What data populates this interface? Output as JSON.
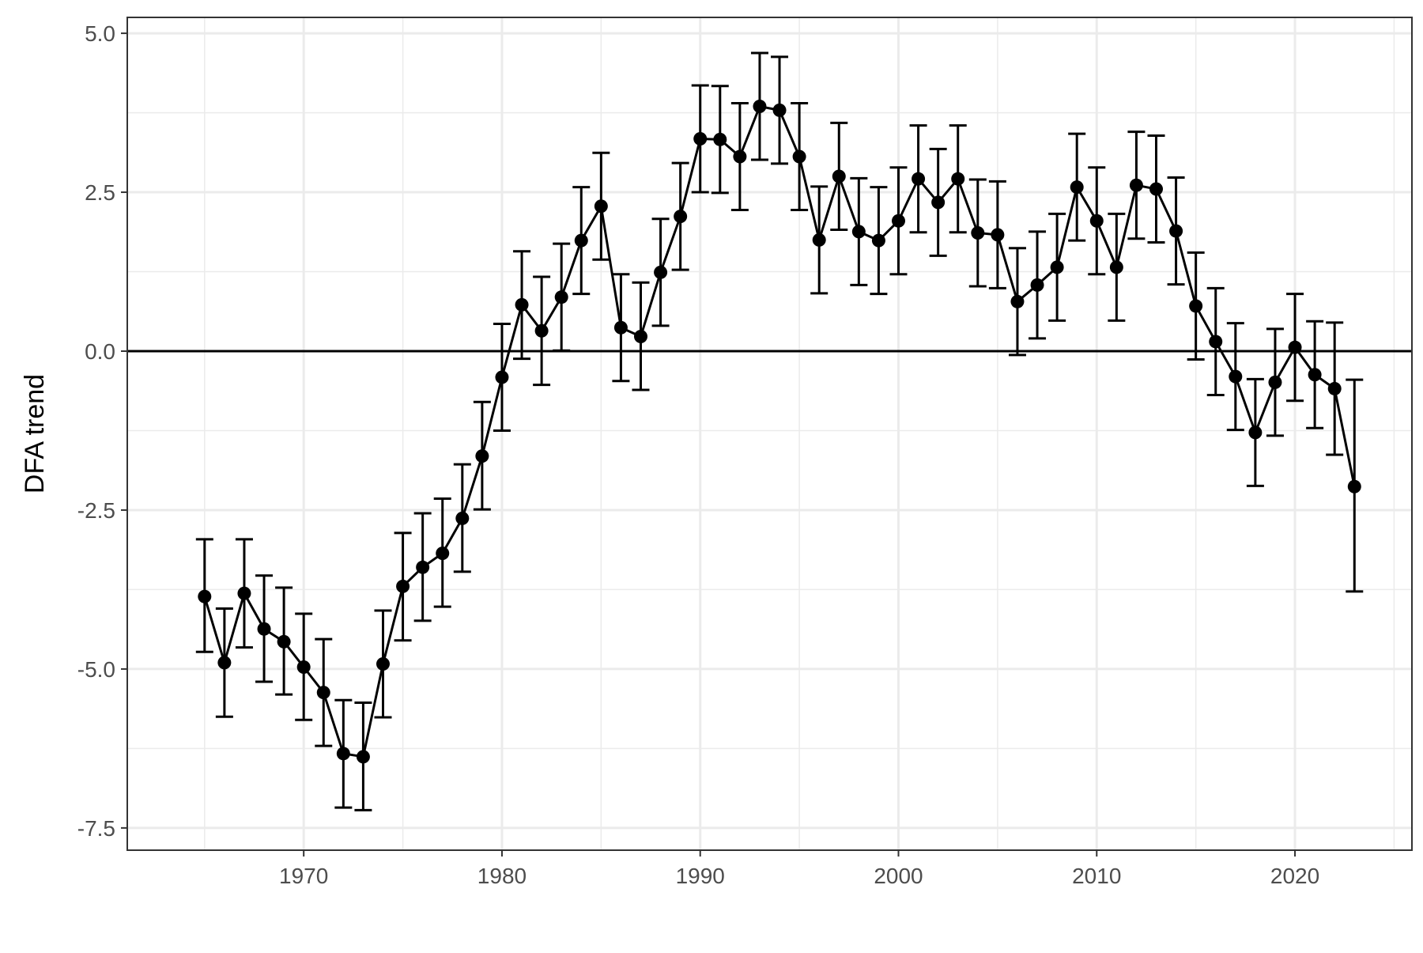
{
  "chart_data": {
    "type": "line",
    "title": "",
    "xlabel": "",
    "ylabel": "DFA trend",
    "xlim": [
      1961.1,
      2025.9
    ],
    "ylim": [
      -7.85,
      5.25
    ],
    "x_ticks": [
      1970,
      1980,
      1990,
      2000,
      2010,
      2020
    ],
    "y_ticks": [
      5.0,
      2.5,
      0.0,
      -2.5,
      -5.0,
      -7.5
    ],
    "x_tick_labels": [
      "1970",
      "1980",
      "1990",
      "2000",
      "2010",
      "2020"
    ],
    "y_tick_labels": [
      "5.0",
      "2.5",
      "0.0",
      "-2.5",
      "-5.0",
      "-7.5"
    ],
    "grid": true,
    "reference_line_y": 0,
    "series": [
      {
        "x": [
          1965,
          1966,
          1967,
          1968,
          1969,
          1970,
          1971,
          1972,
          1973,
          1974,
          1975,
          1976,
          1977,
          1978,
          1979,
          1980,
          1981,
          1982,
          1983,
          1984,
          1985,
          1986,
          1987,
          1988,
          1989,
          1990,
          1991,
          1992,
          1993,
          1994,
          1995,
          1996,
          1997,
          1998,
          1999,
          2000,
          2001,
          2002,
          2003,
          2004,
          2005,
          2006,
          2007,
          2008,
          2009,
          2010,
          2011,
          2012,
          2013,
          2014,
          2015,
          2016,
          2017,
          2018,
          2019,
          2020,
          2021,
          2022,
          2023
        ],
        "y": [
          -3.86,
          -4.9,
          -3.81,
          -4.37,
          -4.57,
          -4.97,
          -5.37,
          -6.33,
          -6.38,
          -4.92,
          -3.7,
          -3.4,
          -3.18,
          -2.63,
          -1.65,
          -0.41,
          0.73,
          0.32,
          0.85,
          1.74,
          2.28,
          0.37,
          0.23,
          1.24,
          2.12,
          3.34,
          3.33,
          3.06,
          3.85,
          3.79,
          3.06,
          1.75,
          2.75,
          1.88,
          1.74,
          2.05,
          2.71,
          2.34,
          2.71,
          1.86,
          1.83,
          0.78,
          1.04,
          1.32,
          2.58,
          2.05,
          1.32,
          2.61,
          2.55,
          1.89,
          0.71,
          0.15,
          -0.4,
          -1.28,
          -0.49,
          0.06,
          -0.37,
          -0.59,
          -2.13
        ],
        "lower": [
          -4.73,
          -5.75,
          -4.66,
          -5.2,
          -5.4,
          -5.8,
          -6.21,
          -7.18,
          -7.22,
          -5.76,
          -4.55,
          -4.24,
          -4.02,
          -3.47,
          -2.49,
          -1.25,
          -0.12,
          -0.53,
          0.01,
          0.9,
          1.44,
          -0.47,
          -0.61,
          0.4,
          1.28,
          2.5,
          2.49,
          2.22,
          3.01,
          2.95,
          2.22,
          0.91,
          1.91,
          1.04,
          0.9,
          1.21,
          1.87,
          1.5,
          1.87,
          1.02,
          0.99,
          -0.06,
          0.2,
          0.48,
          1.74,
          1.21,
          0.48,
          1.77,
          1.71,
          1.05,
          -0.13,
          -0.69,
          -1.24,
          -2.12,
          -1.33,
          -0.78,
          -1.21,
          -1.63,
          -3.78
        ],
        "upper": [
          -2.96,
          -4.05,
          -2.96,
          -3.53,
          -3.72,
          -4.13,
          -4.53,
          -5.49,
          -5.53,
          -4.08,
          -2.86,
          -2.55,
          -2.32,
          -1.78,
          -0.8,
          0.43,
          1.57,
          1.17,
          1.69,
          2.58,
          3.12,
          1.21,
          1.08,
          2.08,
          2.96,
          4.18,
          4.17,
          3.9,
          4.69,
          4.63,
          3.9,
          2.59,
          3.59,
          2.72,
          2.58,
          2.89,
          3.55,
          3.18,
          3.55,
          2.7,
          2.67,
          1.62,
          1.88,
          2.16,
          3.42,
          2.89,
          2.16,
          3.45,
          3.39,
          2.73,
          1.55,
          0.99,
          0.44,
          -0.44,
          0.35,
          0.9,
          0.47,
          0.45,
          -0.45
        ]
      }
    ]
  }
}
